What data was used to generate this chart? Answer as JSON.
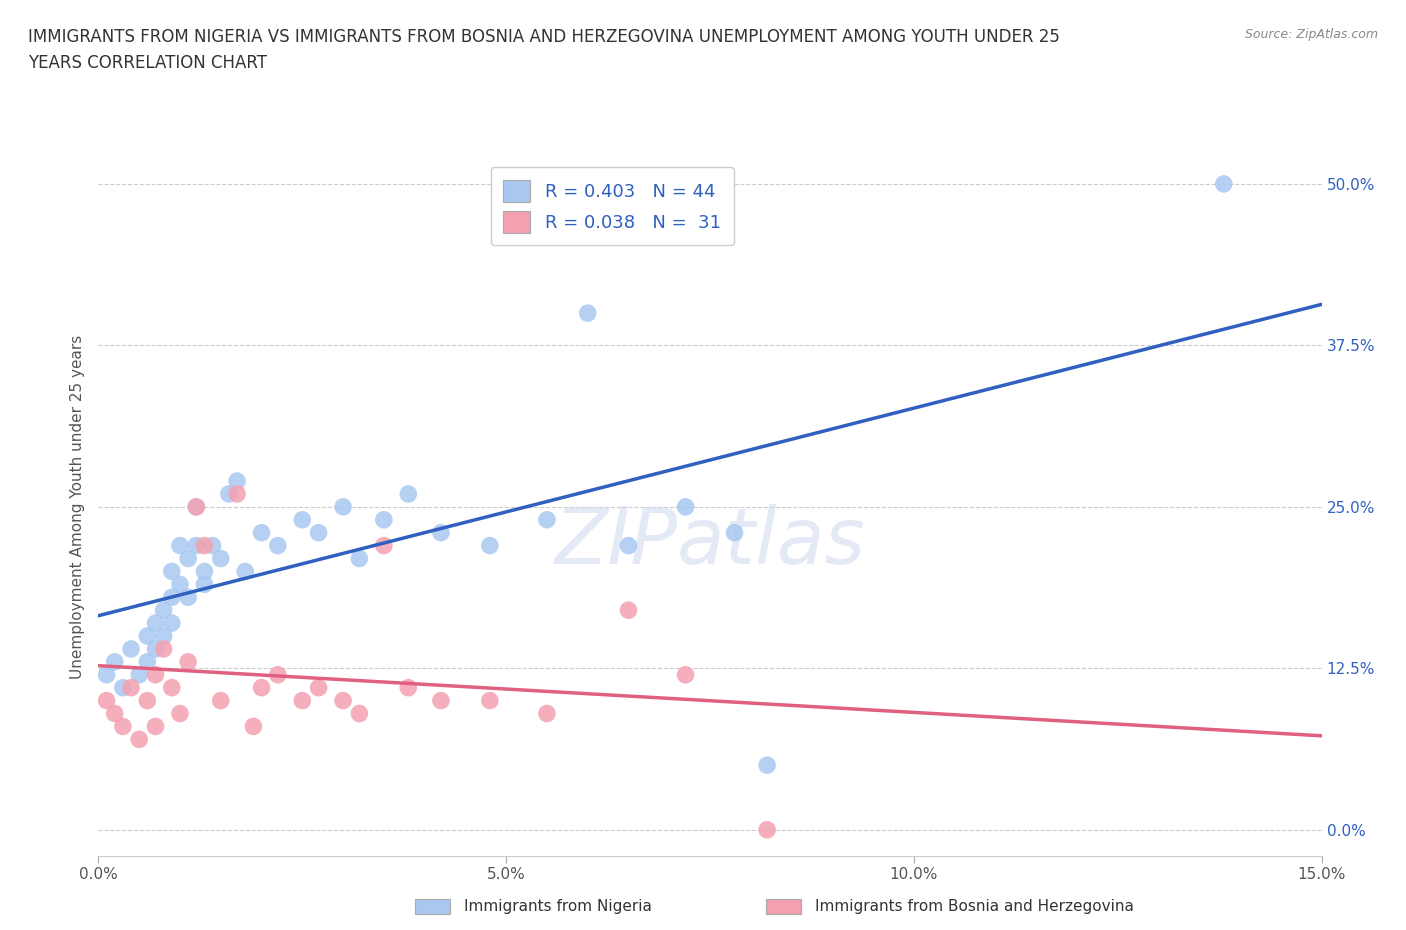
{
  "title": "IMMIGRANTS FROM NIGERIA VS IMMIGRANTS FROM BOSNIA AND HERZEGOVINA UNEMPLOYMENT AMONG YOUTH UNDER 25\nYEARS CORRELATION CHART",
  "source": "Source: ZipAtlas.com",
  "ylabel": "Unemployment Among Youth under 25 years",
  "xlim": [
    0.0,
    0.15
  ],
  "ylim": [
    -0.02,
    0.52
  ],
  "nigeria_color": "#a8c8f0",
  "bosnia_color": "#f4a0b0",
  "nigeria_line_color": "#3060c0",
  "bosnia_line_color": "#e06080",
  "legend_r_nigeria": "0.403",
  "legend_n_nigeria": "44",
  "legend_r_bosnia": "0.038",
  "legend_n_bosnia": "31",
  "nigeria_x": [
    0.001,
    0.002,
    0.003,
    0.004,
    0.005,
    0.006,
    0.006,
    0.007,
    0.007,
    0.008,
    0.008,
    0.009,
    0.009,
    0.009,
    0.01,
    0.01,
    0.011,
    0.011,
    0.012,
    0.012,
    0.013,
    0.013,
    0.014,
    0.015,
    0.016,
    0.017,
    0.018,
    0.02,
    0.022,
    0.025,
    0.027,
    0.03,
    0.032,
    0.035,
    0.038,
    0.042,
    0.048,
    0.055,
    0.06,
    0.065,
    0.072,
    0.078,
    0.082,
    0.138
  ],
  "nigeria_y": [
    0.12,
    0.13,
    0.11,
    0.14,
    0.12,
    0.15,
    0.13,
    0.16,
    0.14,
    0.17,
    0.15,
    0.2,
    0.18,
    0.16,
    0.22,
    0.19,
    0.21,
    0.18,
    0.25,
    0.22,
    0.2,
    0.19,
    0.22,
    0.21,
    0.26,
    0.27,
    0.2,
    0.23,
    0.22,
    0.24,
    0.23,
    0.25,
    0.21,
    0.24,
    0.26,
    0.23,
    0.22,
    0.24,
    0.4,
    0.22,
    0.25,
    0.23,
    0.05,
    0.5
  ],
  "bosnia_x": [
    0.001,
    0.002,
    0.003,
    0.004,
    0.005,
    0.006,
    0.007,
    0.007,
    0.008,
    0.009,
    0.01,
    0.011,
    0.012,
    0.013,
    0.015,
    0.017,
    0.019,
    0.02,
    0.022,
    0.025,
    0.027,
    0.03,
    0.032,
    0.035,
    0.038,
    0.042,
    0.048,
    0.055,
    0.065,
    0.072,
    0.082
  ],
  "bosnia_y": [
    0.1,
    0.09,
    0.08,
    0.11,
    0.07,
    0.1,
    0.12,
    0.08,
    0.14,
    0.11,
    0.09,
    0.13,
    0.25,
    0.22,
    0.1,
    0.26,
    0.08,
    0.11,
    0.12,
    0.1,
    0.11,
    0.1,
    0.09,
    0.22,
    0.11,
    0.1,
    0.1,
    0.09,
    0.17,
    0.12,
    0.0
  ],
  "watermark": "ZIPatlas",
  "background_color": "#ffffff",
  "grid_color": "#cccccc",
  "x_tick_vals": [
    0.0,
    0.05,
    0.1,
    0.15
  ],
  "y_tick_vals": [
    0.0,
    0.125,
    0.25,
    0.375,
    0.5
  ]
}
